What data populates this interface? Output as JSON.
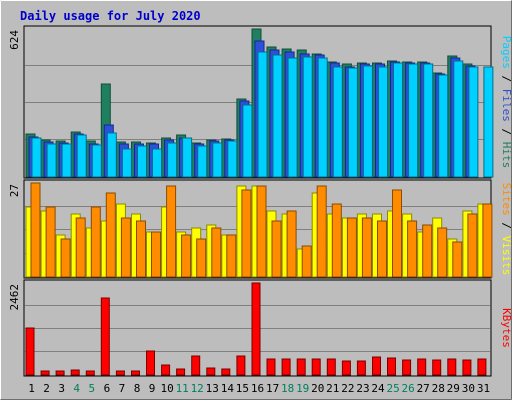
{
  "chart_data": {
    "title": "Daily usage for July 2020",
    "categories": [
      "1",
      "2",
      "3",
      "4",
      "5",
      "6",
      "7",
      "8",
      "9",
      "10",
      "11",
      "12",
      "13",
      "14",
      "15",
      "16",
      "17",
      "18",
      "19",
      "20",
      "21",
      "22",
      "23",
      "24",
      "25",
      "26",
      "27",
      "28",
      "29",
      "30",
      "31"
    ],
    "weekend_days": [
      4,
      5,
      11,
      12,
      18,
      19,
      25,
      26
    ],
    "panels": [
      {
        "type": "bar",
        "id": "hits-files-pages",
        "ylabel_parts": [
          "Pages",
          " / ",
          "Files",
          " / ",
          "Hits"
        ],
        "ytick_max_label": "624",
        "ylim": [
          0,
          624
        ],
        "series": [
          {
            "name": "Hits",
            "color": "#1f7f5f",
            "values": [
              180,
              155,
              150,
              190,
              150,
              390,
              148,
              148,
              145,
              165,
              175,
              145,
              158,
              160,
              330,
              624,
              550,
              540,
              535,
              520,
              485,
              475,
              480,
              480,
              490,
              485,
              485,
              440,
              510,
              475,
              0
            ]
          },
          {
            "name": "Files",
            "color": "#2e50d8",
            "values": [
              170,
              148,
              143,
              180,
              140,
              220,
              140,
              140,
              140,
              155,
              165,
              140,
              150,
              155,
              320,
              575,
              535,
              525,
              520,
              515,
              480,
              465,
              475,
              475,
              485,
              480,
              480,
              435,
              500,
              470,
              0
            ]
          },
          {
            "name": "Pages",
            "color": "#00d0ff",
            "values": [
              165,
              140,
              138,
              175,
              135,
              185,
              120,
              130,
              120,
              145,
              165,
              130,
              145,
              150,
              305,
              525,
              515,
              500,
              505,
              500,
              465,
              460,
              470,
              465,
              480,
              475,
              475,
              430,
              490,
              465,
              465
            ]
          }
        ]
      },
      {
        "type": "bar",
        "id": "visits-sites",
        "ylabel_parts": [
          "Sites",
          " / ",
          "Visits"
        ],
        "ytick_max_label": "27",
        "ylim": [
          0,
          27
        ],
        "series": [
          {
            "name": "Visits",
            "color": "#ffff00",
            "values": [
              20,
              19,
              12,
              18,
              14,
              16,
              21,
              18,
              13,
              20,
              13,
              14,
              15,
              12,
              26,
              26,
              19,
              18,
              8,
              24,
              18,
              17,
              18,
              18,
              19,
              18,
              13,
              17,
              11,
              19,
              21
            ]
          },
          {
            "name": "Sites",
            "color": "#ff8c00",
            "values": [
              27,
              20,
              11,
              17,
              20,
              24,
              17,
              16,
              13,
              26,
              12,
              11,
              14,
              12,
              25,
              26,
              16,
              19,
              9,
              26,
              21,
              17,
              17,
              16,
              25,
              16,
              15,
              14,
              10,
              18,
              21
            ]
          }
        ]
      },
      {
        "type": "bar",
        "id": "kbytes",
        "ylabel_parts": [
          "KBytes"
        ],
        "ytick_max_label": "2462",
        "ylim": [
          0,
          2462
        ],
        "series": [
          {
            "name": "KBytes",
            "color": "#ff0000",
            "values": [
              1250,
              120,
              110,
              130,
              110,
              2050,
              120,
              120,
              630,
              260,
              170,
              520,
              180,
              150,
              520,
              2462,
              430,
              430,
              430,
              440,
              430,
              380,
              370,
              480,
              450,
              410,
              420,
              400,
              420,
              410,
              420
            ]
          }
        ]
      }
    ]
  }
}
